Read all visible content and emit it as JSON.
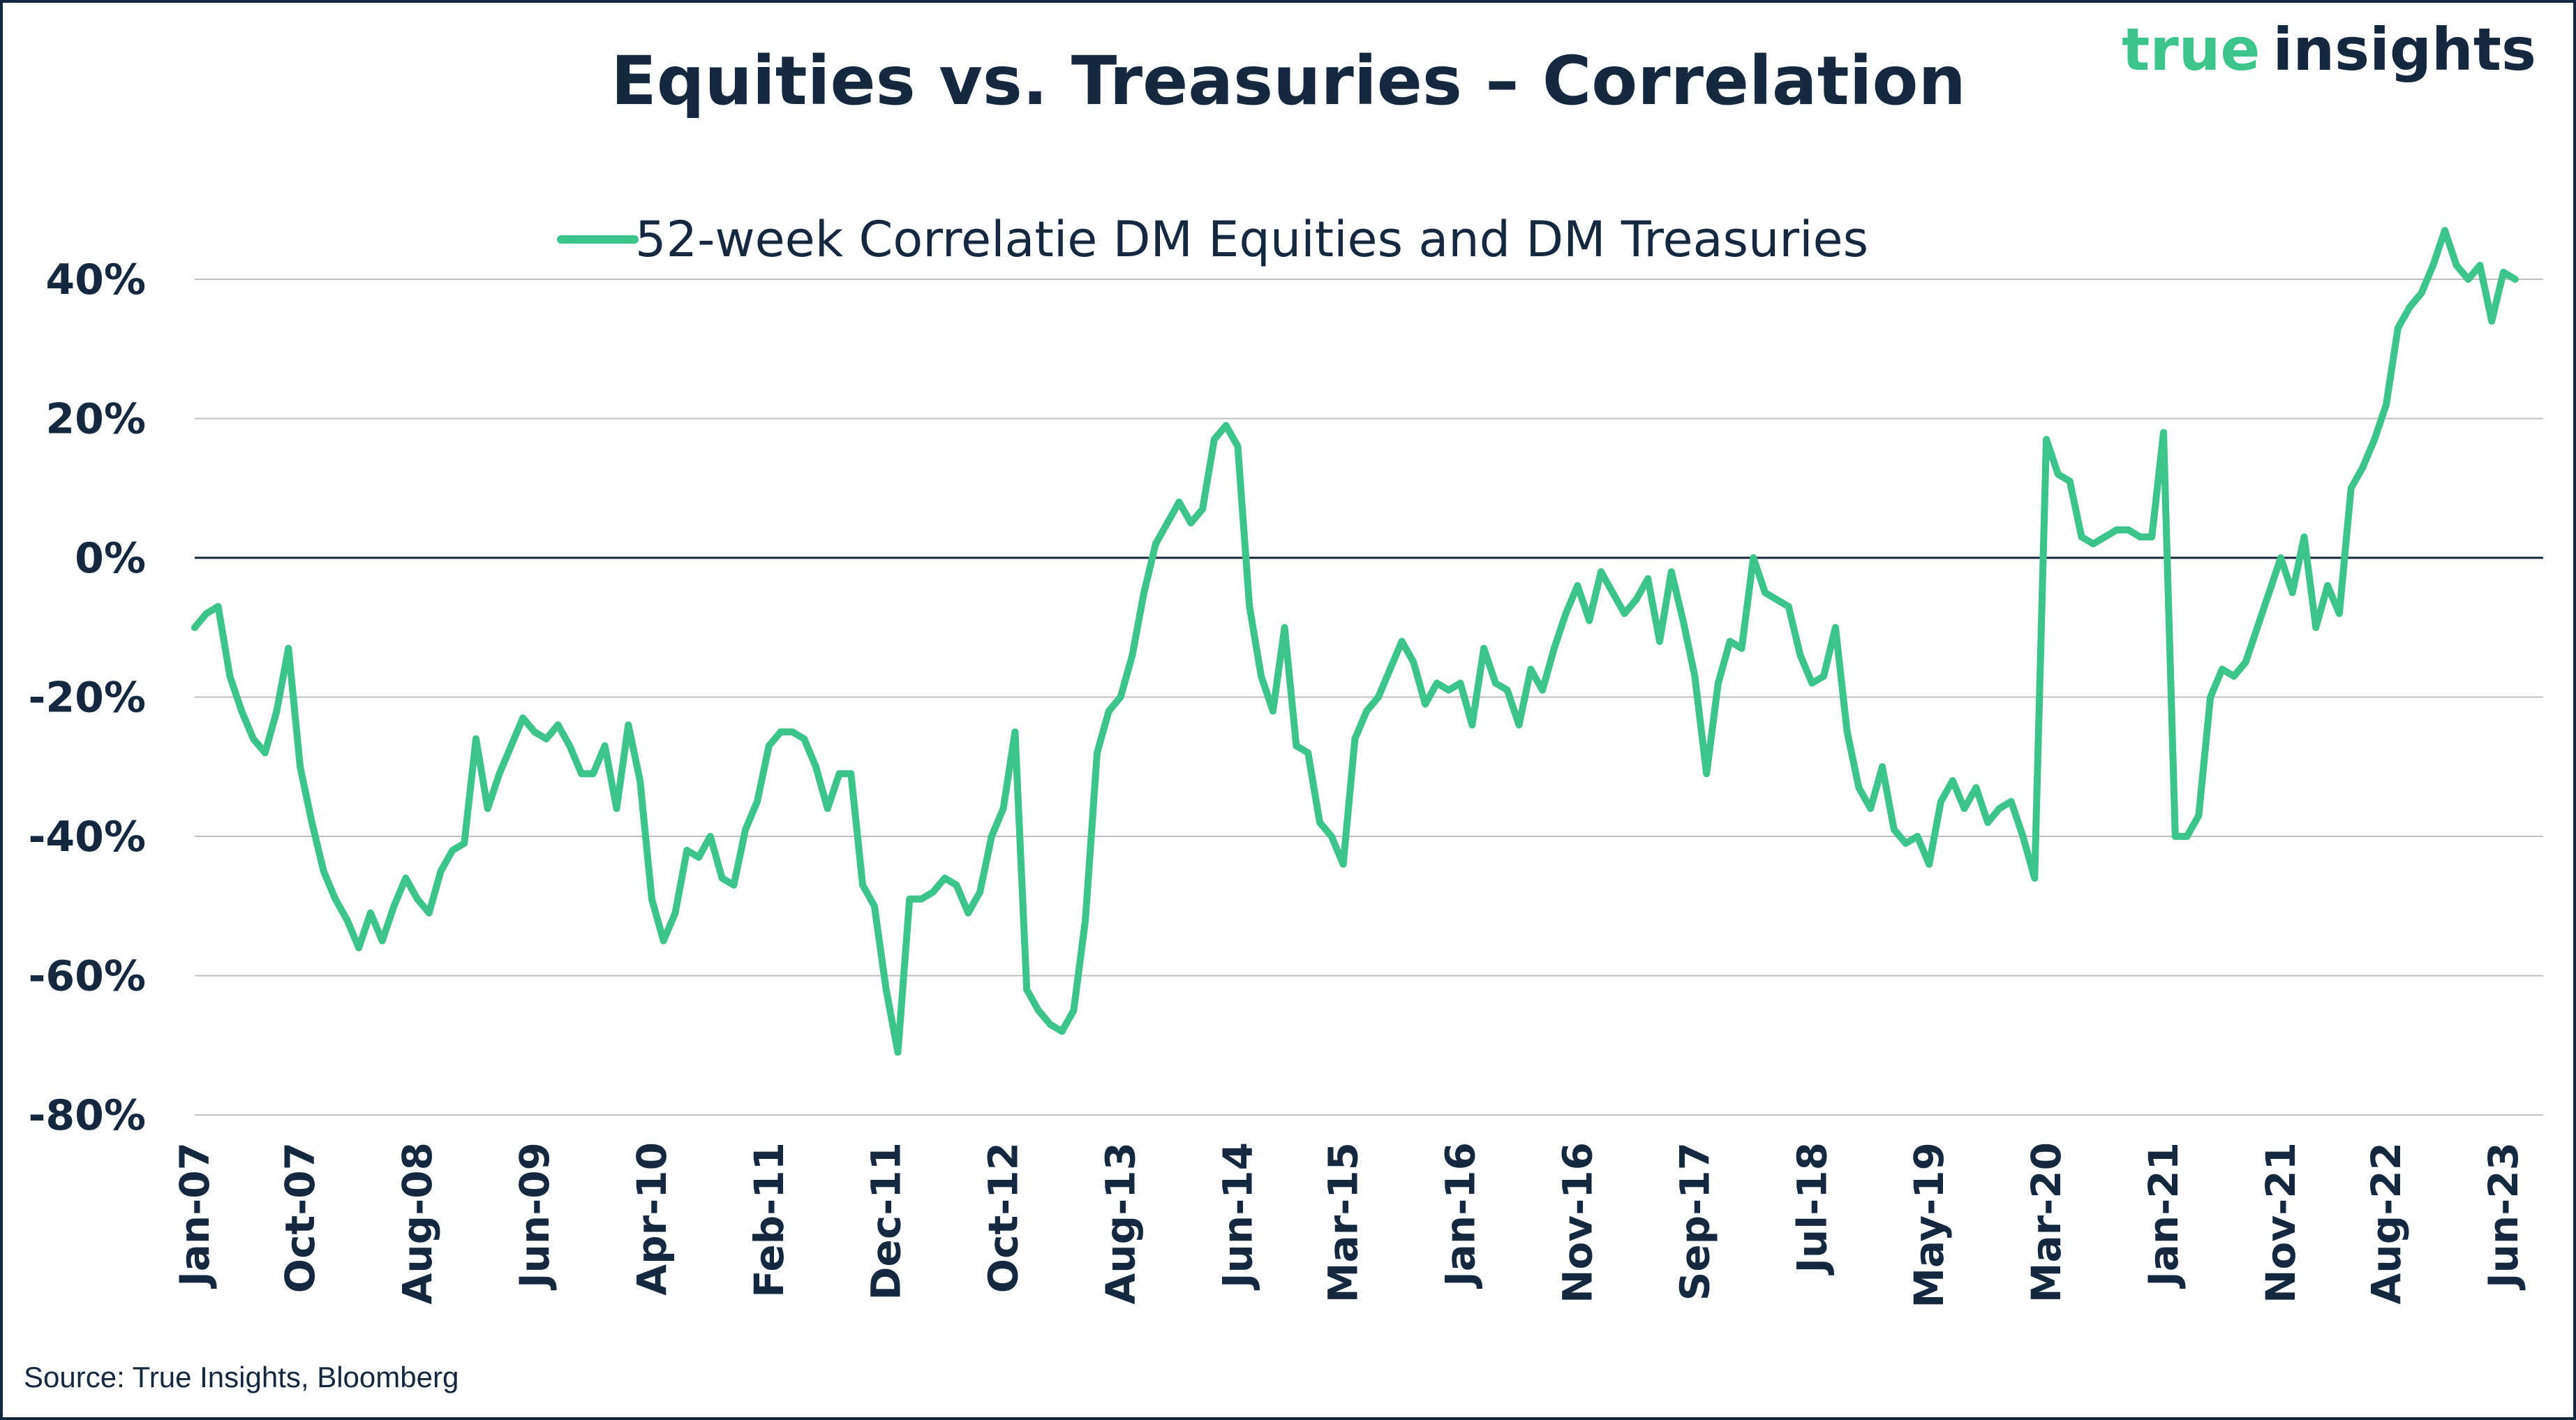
{
  "brand": {
    "word1": "true",
    "word2": "insights",
    "accent_color": "#3cc48b",
    "dark_color": "#16283f"
  },
  "source": "Source: True Insights, Bloomberg",
  "chart_data": {
    "type": "line",
    "title": "Equities vs. Treasuries – Correlation",
    "xlabel": "",
    "ylabel": "",
    "ylim": [
      -80,
      40
    ],
    "y_ticks": [
      40,
      20,
      0,
      -20,
      -40,
      -60,
      -80
    ],
    "y_tick_labels": [
      "40%",
      "20%",
      "0%",
      "-20%",
      "-40%",
      "-60%",
      "-80%"
    ],
    "x_tick_labels": [
      "Jan-07",
      "Oct-07",
      "Aug-08",
      "Jun-09",
      "Apr-10",
      "Feb-11",
      "Dec-11",
      "Oct-12",
      "Aug-13",
      "Jun-14",
      "Mar-15",
      "Jan-16",
      "Nov-16",
      "Sep-17",
      "Jul-18",
      "May-19",
      "Mar-20",
      "Jan-21",
      "Nov-21",
      "Aug-22",
      "Jun-23"
    ],
    "x_tick_dates": [
      "2007-01",
      "2007-10",
      "2008-08",
      "2009-06",
      "2010-04",
      "2011-02",
      "2011-12",
      "2012-10",
      "2013-08",
      "2014-06",
      "2015-03",
      "2016-01",
      "2016-11",
      "2017-09",
      "2018-07",
      "2019-05",
      "2020-03",
      "2021-01",
      "2021-11",
      "2022-08",
      "2023-06"
    ],
    "grid": true,
    "legend_position": "top-center",
    "series": [
      {
        "name": "52-week Correlatie DM Equities and DM Treasuries",
        "color": "#3cc48b",
        "unit": "%",
        "points": [
          [
            "2007-01",
            -10
          ],
          [
            "2007-02",
            -8
          ],
          [
            "2007-03",
            -7
          ],
          [
            "2007-04",
            -17
          ],
          [
            "2007-05",
            -22
          ],
          [
            "2007-06",
            -26
          ],
          [
            "2007-07",
            -28
          ],
          [
            "2007-08",
            -22
          ],
          [
            "2007-09",
            -13
          ],
          [
            "2007-10",
            -30
          ],
          [
            "2007-11",
            -38
          ],
          [
            "2007-12",
            -45
          ],
          [
            "2008-01",
            -49
          ],
          [
            "2008-02",
            -52
          ],
          [
            "2008-03",
            -56
          ],
          [
            "2008-04",
            -51
          ],
          [
            "2008-05",
            -55
          ],
          [
            "2008-06",
            -50
          ],
          [
            "2008-07",
            -46
          ],
          [
            "2008-08",
            -49
          ],
          [
            "2008-09",
            -51
          ],
          [
            "2008-10",
            -45
          ],
          [
            "2008-11",
            -42
          ],
          [
            "2008-12",
            -41
          ],
          [
            "2009-01",
            -26
          ],
          [
            "2009-02",
            -36
          ],
          [
            "2009-03",
            -31
          ],
          [
            "2009-04",
            -27
          ],
          [
            "2009-05",
            -23
          ],
          [
            "2009-06",
            -25
          ],
          [
            "2009-07",
            -26
          ],
          [
            "2009-08",
            -24
          ],
          [
            "2009-09",
            -27
          ],
          [
            "2009-10",
            -31
          ],
          [
            "2009-11",
            -31
          ],
          [
            "2009-12",
            -27
          ],
          [
            "2010-01",
            -36
          ],
          [
            "2010-02",
            -24
          ],
          [
            "2010-03",
            -32
          ],
          [
            "2010-04",
            -49
          ],
          [
            "2010-05",
            -55
          ],
          [
            "2010-06",
            -51
          ],
          [
            "2010-07",
            -42
          ],
          [
            "2010-08",
            -43
          ],
          [
            "2010-09",
            -40
          ],
          [
            "2010-10",
            -46
          ],
          [
            "2010-11",
            -47
          ],
          [
            "2010-12",
            -39
          ],
          [
            "2011-01",
            -35
          ],
          [
            "2011-02",
            -27
          ],
          [
            "2011-03",
            -25
          ],
          [
            "2011-04",
            -25
          ],
          [
            "2011-05",
            -26
          ],
          [
            "2011-06",
            -30
          ],
          [
            "2011-07",
            -36
          ],
          [
            "2011-08",
            -31
          ],
          [
            "2011-09",
            -31
          ],
          [
            "2011-10",
            -47
          ],
          [
            "2011-11",
            -50
          ],
          [
            "2011-12",
            -62
          ],
          [
            "2012-01",
            -71
          ],
          [
            "2012-02",
            -49
          ],
          [
            "2012-03",
            -49
          ],
          [
            "2012-04",
            -48
          ],
          [
            "2012-05",
            -46
          ],
          [
            "2012-06",
            -47
          ],
          [
            "2012-07",
            -51
          ],
          [
            "2012-08",
            -48
          ],
          [
            "2012-09",
            -40
          ],
          [
            "2012-10",
            -36
          ],
          [
            "2012-11",
            -25
          ],
          [
            "2012-12",
            -62
          ],
          [
            "2013-01",
            -65
          ],
          [
            "2013-02",
            -67
          ],
          [
            "2013-03",
            -68
          ],
          [
            "2013-04",
            -65
          ],
          [
            "2013-05",
            -52
          ],
          [
            "2013-06",
            -28
          ],
          [
            "2013-07",
            -22
          ],
          [
            "2013-08",
            -20
          ],
          [
            "2013-09",
            -14
          ],
          [
            "2013-10",
            -5
          ],
          [
            "2013-11",
            2
          ],
          [
            "2013-12",
            5
          ],
          [
            "2014-01",
            8
          ],
          [
            "2014-02",
            5
          ],
          [
            "2014-03",
            7
          ],
          [
            "2014-04",
            17
          ],
          [
            "2014-05",
            19
          ],
          [
            "2014-06",
            16
          ],
          [
            "2014-07",
            -7
          ],
          [
            "2014-08",
            -17
          ],
          [
            "2014-09",
            -22
          ],
          [
            "2014-10",
            -10
          ],
          [
            "2014-11",
            -27
          ],
          [
            "2014-12",
            -28
          ],
          [
            "2015-01",
            -38
          ],
          [
            "2015-02",
            -40
          ],
          [
            "2015-03",
            -44
          ],
          [
            "2015-04",
            -26
          ],
          [
            "2015-05",
            -22
          ],
          [
            "2015-06",
            -20
          ],
          [
            "2015-07",
            -16
          ],
          [
            "2015-08",
            -12
          ],
          [
            "2015-09",
            -15
          ],
          [
            "2015-10",
            -21
          ],
          [
            "2015-11",
            -18
          ],
          [
            "2015-12",
            -19
          ],
          [
            "2016-01",
            -18
          ],
          [
            "2016-02",
            -24
          ],
          [
            "2016-03",
            -13
          ],
          [
            "2016-04",
            -18
          ],
          [
            "2016-05",
            -19
          ],
          [
            "2016-06",
            -24
          ],
          [
            "2016-07",
            -16
          ],
          [
            "2016-08",
            -19
          ],
          [
            "2016-09",
            -13
          ],
          [
            "2016-10",
            -8
          ],
          [
            "2016-11",
            -4
          ],
          [
            "2016-12",
            -9
          ],
          [
            "2017-01",
            -2
          ],
          [
            "2017-02",
            -5
          ],
          [
            "2017-03",
            -8
          ],
          [
            "2017-04",
            -6
          ],
          [
            "2017-05",
            -3
          ],
          [
            "2017-06",
            -12
          ],
          [
            "2017-07",
            -2
          ],
          [
            "2017-08",
            -9
          ],
          [
            "2017-09",
            -17
          ],
          [
            "2017-10",
            -31
          ],
          [
            "2017-11",
            -18
          ],
          [
            "2017-12",
            -12
          ],
          [
            "2018-01",
            -13
          ],
          [
            "2018-02",
            0
          ],
          [
            "2018-03",
            -5
          ],
          [
            "2018-04",
            -6
          ],
          [
            "2018-05",
            -7
          ],
          [
            "2018-06",
            -14
          ],
          [
            "2018-07",
            -18
          ],
          [
            "2018-08",
            -17
          ],
          [
            "2018-09",
            -10
          ],
          [
            "2018-10",
            -25
          ],
          [
            "2018-11",
            -33
          ],
          [
            "2018-12",
            -36
          ],
          [
            "2019-01",
            -30
          ],
          [
            "2019-02",
            -39
          ],
          [
            "2019-03",
            -41
          ],
          [
            "2019-04",
            -40
          ],
          [
            "2019-05",
            -44
          ],
          [
            "2019-06",
            -35
          ],
          [
            "2019-07",
            -32
          ],
          [
            "2019-08",
            -36
          ],
          [
            "2019-09",
            -33
          ],
          [
            "2019-10",
            -38
          ],
          [
            "2019-11",
            -36
          ],
          [
            "2019-12",
            -35
          ],
          [
            "2020-01",
            -40
          ],
          [
            "2020-02",
            -46
          ],
          [
            "2020-03",
            17
          ],
          [
            "2020-04",
            12
          ],
          [
            "2020-05",
            11
          ],
          [
            "2020-06",
            3
          ],
          [
            "2020-07",
            2
          ],
          [
            "2020-08",
            3
          ],
          [
            "2020-09",
            4
          ],
          [
            "2020-10",
            4
          ],
          [
            "2020-11",
            3
          ],
          [
            "2020-12",
            3
          ],
          [
            "2021-01",
            18
          ],
          [
            "2021-02",
            -40
          ],
          [
            "2021-03",
            -40
          ],
          [
            "2021-04",
            -37
          ],
          [
            "2021-05",
            -20
          ],
          [
            "2021-06",
            -16
          ],
          [
            "2021-07",
            -17
          ],
          [
            "2021-08",
            -15
          ],
          [
            "2021-09",
            -10
          ],
          [
            "2021-10",
            -5
          ],
          [
            "2021-11",
            0
          ],
          [
            "2021-12",
            -5
          ],
          [
            "2022-01",
            3
          ],
          [
            "2022-02",
            -10
          ],
          [
            "2022-03",
            -4
          ],
          [
            "2022-04",
            -8
          ],
          [
            "2022-05",
            10
          ],
          [
            "2022-06",
            13
          ],
          [
            "2022-07",
            17
          ],
          [
            "2022-08",
            22
          ],
          [
            "2022-09",
            33
          ],
          [
            "2022-10",
            36
          ],
          [
            "2022-11",
            38
          ],
          [
            "2022-12",
            42
          ],
          [
            "2023-01",
            47
          ],
          [
            "2023-02",
            42
          ],
          [
            "2023-03",
            40
          ],
          [
            "2023-04",
            42
          ],
          [
            "2023-05",
            34
          ],
          [
            "2023-06",
            41
          ],
          [
            "2023-07",
            40
          ]
        ]
      }
    ]
  }
}
